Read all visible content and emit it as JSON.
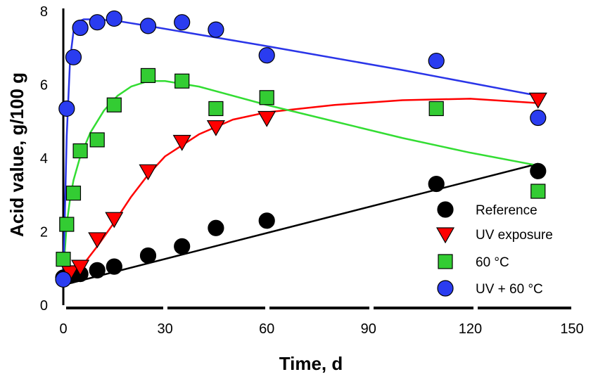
{
  "chart_data": {
    "type": "scatter",
    "xlabel": "Time, d",
    "ylabel": "Acid value, g/100 g",
    "xlim": [
      0,
      150
    ],
    "ylim": [
      0,
      8
    ],
    "xticks": [
      "0",
      "30",
      "60",
      "90",
      "120",
      "150"
    ],
    "yticks": [
      "0",
      "2",
      "4",
      "6",
      "8"
    ],
    "grid": false,
    "legend_position": "bottom-right",
    "series": [
      {
        "name": "Reference",
        "marker": "circle",
        "color": "#000000",
        "line_color": "#000000",
        "x": [
          0,
          2,
          5,
          10,
          15,
          25,
          35,
          45,
          60,
          110,
          140
        ],
        "y": [
          0.75,
          0.8,
          0.85,
          0.95,
          1.05,
          1.35,
          1.6,
          2.1,
          2.3,
          3.3,
          3.65
        ],
        "fit_x": [
          0,
          140
        ],
        "fit_y": [
          0.55,
          3.85
        ]
      },
      {
        "name": "UV exposure",
        "marker": "triangle-down",
        "color": "#ff0000",
        "line_color": "#ff0000",
        "x": [
          2,
          5,
          10,
          15,
          25,
          35,
          45,
          60,
          140
        ],
        "y": [
          0.9,
          1.05,
          1.8,
          2.35,
          3.65,
          4.45,
          4.85,
          5.1,
          5.6
        ],
        "fit_x": [
          0,
          5,
          10,
          15,
          20,
          25,
          30,
          40,
          50,
          60,
          80,
          100,
          120,
          140
        ],
        "fit_y": [
          0.55,
          1.0,
          1.6,
          2.25,
          2.95,
          3.55,
          4.05,
          4.65,
          5.05,
          5.25,
          5.45,
          5.58,
          5.62,
          5.5
        ]
      },
      {
        "name": "60 °C",
        "marker": "square",
        "color": "#33cc33",
        "line_color": "#33dd33",
        "x": [
          0,
          1,
          3,
          5,
          10,
          15,
          25,
          35,
          45,
          60,
          110,
          140
        ],
        "y": [
          1.25,
          2.2,
          3.05,
          4.2,
          4.5,
          5.45,
          6.25,
          6.1,
          5.35,
          5.65,
          5.35,
          3.1
        ],
        "fit_x": [
          0,
          1,
          2,
          3,
          5,
          8,
          12,
          16,
          20,
          25,
          30,
          40,
          60,
          80,
          100,
          120,
          140
        ],
        "fit_y": [
          0.9,
          2.2,
          2.9,
          3.4,
          4.05,
          4.7,
          5.3,
          5.7,
          5.95,
          6.1,
          6.1,
          5.95,
          5.45,
          5.0,
          4.55,
          4.15,
          3.8
        ]
      },
      {
        "name": "UV + 60 °C",
        "marker": "circle",
        "color": "#2a3cf0",
        "line_color": "#2a35e8",
        "x": [
          0,
          1,
          3,
          5,
          10,
          15,
          25,
          35,
          45,
          60,
          110,
          140
        ],
        "y": [
          0.7,
          5.35,
          6.75,
          7.55,
          7.7,
          7.8,
          7.6,
          7.7,
          7.5,
          6.8,
          6.65,
          5.1
        ],
        "fit_x": [
          0,
          1,
          2,
          3,
          4,
          6,
          8,
          15,
          25,
          60,
          100,
          140
        ],
        "fit_y": [
          0.7,
          4.6,
          6.7,
          7.45,
          7.7,
          7.78,
          7.78,
          7.75,
          7.6,
          7.05,
          6.4,
          5.7
        ]
      }
    ]
  }
}
